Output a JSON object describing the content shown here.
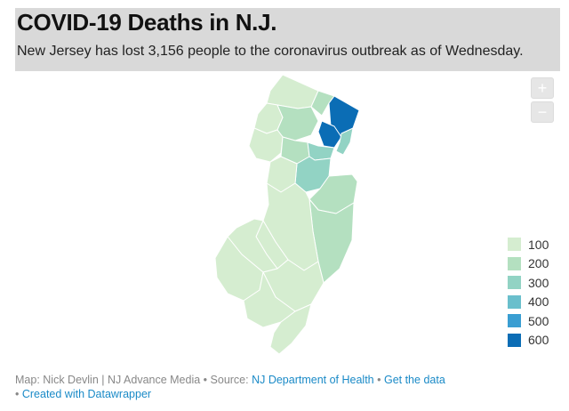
{
  "header": {
    "title": "COVID-19 Deaths in N.J.",
    "subtitle": "New Jersey has lost 3,156 people to the coronavirus outbreak as of Wednesday."
  },
  "zoom": {
    "in_label": "+",
    "out_label": "−"
  },
  "legend": {
    "items": [
      {
        "label": "100",
        "color": "#d5edd0"
      },
      {
        "label": "200",
        "color": "#b4e0c0"
      },
      {
        "label": "300",
        "color": "#92d3c4"
      },
      {
        "label": "400",
        "color": "#6abfcc"
      },
      {
        "label": "500",
        "color": "#3a9ed2"
      },
      {
        "label": "600",
        "color": "#0b6db5"
      }
    ]
  },
  "footer": {
    "credit": "Map: Nick Devlin | NJ Advance Media",
    "sep1": " • Source: ",
    "source": "NJ Department of Health",
    "sep2": " • ",
    "get_data": "Get the data",
    "sep3": "• ",
    "created_with": "Created with Datawrapper"
  }
}
